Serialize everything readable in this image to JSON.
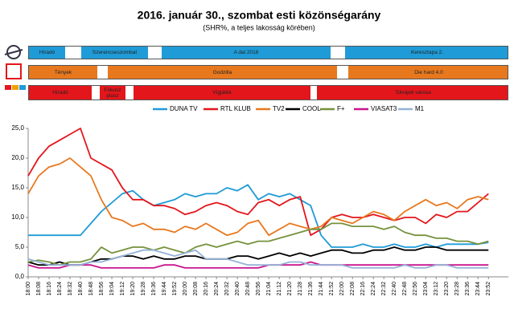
{
  "schedule": [
    [
      "Híradó",
      "Szerencseszombat",
      "A dal 2016",
      "Keresztapa 2."
    ],
    [
      "Tények",
      "Godzilla",
      "Die hard 4.0"
    ],
    [
      "Híradó",
      "Fókusz plusz",
      "Vígjáték",
      "Tolvajok városa"
    ]
  ],
  "chart_data": {
    "type": "line",
    "title": "2016. január 30., szombat esti közönségarány",
    "subtitle": "(SHR%, a teljes lakosság körében)",
    "categories": [
      "18:00",
      "18:08",
      "18:16",
      "18:24",
      "18:32",
      "18:40",
      "18:48",
      "18:56",
      "19:04",
      "19:12",
      "19:20",
      "19:28",
      "19:36",
      "19:44",
      "19:52",
      "20:00",
      "20:08",
      "20:16",
      "20:24",
      "20:32",
      "20:40",
      "20:48",
      "20:56",
      "21:04",
      "21:12",
      "21:20",
      "21:28",
      "21:36",
      "21:44",
      "21:52",
      "22:00",
      "22:08",
      "22:16",
      "22:24",
      "22:32",
      "22:40",
      "22:48",
      "22:56",
      "23:04",
      "23:12",
      "23:20",
      "23:28",
      "23:36",
      "23:44",
      "23:52"
    ],
    "series": [
      {
        "name": "DUNA TV",
        "color": "#1f9bd7",
        "values": [
          7,
          7,
          7,
          7,
          7,
          7,
          9,
          11,
          12.5,
          14,
          14.5,
          13,
          12,
          12.5,
          13,
          14,
          13.5,
          14,
          14,
          15,
          14.5,
          15.5,
          13,
          14,
          13.5,
          14,
          13,
          12,
          7,
          5,
          5,
          5,
          5.5,
          5,
          5,
          5.5,
          5,
          5,
          5.5,
          5,
          5.5,
          5.5,
          5.5,
          5.5,
          5.8
        ]
      },
      {
        "name": "RTL KLUB",
        "color": "#e3161b",
        "values": [
          17,
          20,
          22,
          23,
          24,
          25,
          20,
          19,
          18,
          15,
          13,
          13,
          12,
          12,
          11.5,
          10.5,
          11,
          12,
          12.5,
          12,
          11,
          10.5,
          12.5,
          13,
          12,
          13,
          13.5,
          7,
          8,
          10,
          10.5,
          10,
          10,
          10.5,
          10,
          9.5,
          10,
          10,
          9,
          10.5,
          10,
          11,
          11,
          12.5,
          14
        ]
      },
      {
        "name": "TV2",
        "color": "#e8781e",
        "values": [
          14,
          17,
          18.5,
          19,
          20,
          18.5,
          17,
          13,
          10,
          9.5,
          8.5,
          9,
          8,
          8,
          7.5,
          8.5,
          8,
          9,
          8,
          7,
          7.5,
          9,
          9.5,
          7,
          8,
          9,
          8.5,
          8,
          8.5,
          10,
          9.5,
          9,
          10,
          11,
          10.5,
          9.5,
          11,
          12,
          13,
          12,
          12.5,
          11.5,
          13,
          13.5,
          13
        ]
      },
      {
        "name": "COOL",
        "color": "#000000",
        "values": [
          2.5,
          2,
          2,
          2.5,
          2,
          2,
          2.5,
          3,
          3,
          3.5,
          3.5,
          3,
          3.5,
          3,
          3,
          3.5,
          3.5,
          3,
          3,
          3,
          3.5,
          3.5,
          3,
          3.5,
          4,
          3.5,
          4,
          3.5,
          4,
          4.5,
          4.5,
          4,
          4,
          4.5,
          4.5,
          5,
          4.5,
          4.5,
          5,
          5,
          4.5,
          4.5,
          4.5,
          4.5,
          4.5
        ]
      },
      {
        "name": "F+",
        "color": "#76923c",
        "values": [
          2.5,
          2.8,
          2.5,
          2,
          2.5,
          2.5,
          3,
          5,
          4,
          4.5,
          5,
          5,
          4.5,
          5,
          4.5,
          4,
          5,
          5.5,
          5,
          5.5,
          6,
          5.5,
          6,
          6,
          6.5,
          7,
          7.5,
          8,
          8,
          9,
          9,
          8.5,
          8.5,
          8.5,
          8,
          8.5,
          7.5,
          7,
          7,
          6.5,
          6.5,
          6,
          6,
          5.5,
          6
        ]
      },
      {
        "name": "VIASAT3",
        "color": "#c8158f",
        "values": [
          2,
          1.5,
          1.5,
          1.5,
          2,
          2,
          2,
          1.5,
          1.5,
          1.5,
          1.5,
          1.5,
          1.5,
          2,
          2,
          1.5,
          1.5,
          1.5,
          1.5,
          1.5,
          1.5,
          1.5,
          1.5,
          2,
          2,
          2,
          2,
          2.5,
          2,
          2,
          2,
          2,
          2,
          2,
          2,
          2,
          2,
          2,
          2,
          2,
          2,
          2,
          2,
          2,
          2
        ]
      },
      {
        "name": "M1",
        "color": "#95b3d7",
        "values": [
          3,
          2.5,
          2,
          2,
          2,
          2,
          2.5,
          2.5,
          3,
          3.5,
          4,
          4.5,
          4.5,
          4,
          3.5,
          4,
          4.5,
          3,
          3,
          3,
          2.5,
          2,
          2,
          2,
          2,
          2.5,
          2.5,
          2,
          2,
          2,
          2,
          1.5,
          1.5,
          1.5,
          1.5,
          1.5,
          2,
          1.5,
          1.5,
          2,
          2,
          1.5,
          1.5,
          1.5,
          1.5
        ]
      }
    ],
    "ylim": [
      0,
      25
    ],
    "yticks": [
      {
        "value": 0,
        "label": "0,0"
      },
      {
        "value": 5,
        "label": "5,0"
      },
      {
        "value": 10,
        "label": "10,0"
      },
      {
        "value": 15,
        "label": "15,0"
      },
      {
        "value": 20,
        "label": "20,0"
      },
      {
        "value": 25,
        "label": "25,0"
      }
    ],
    "grid": false,
    "legend": "top"
  }
}
